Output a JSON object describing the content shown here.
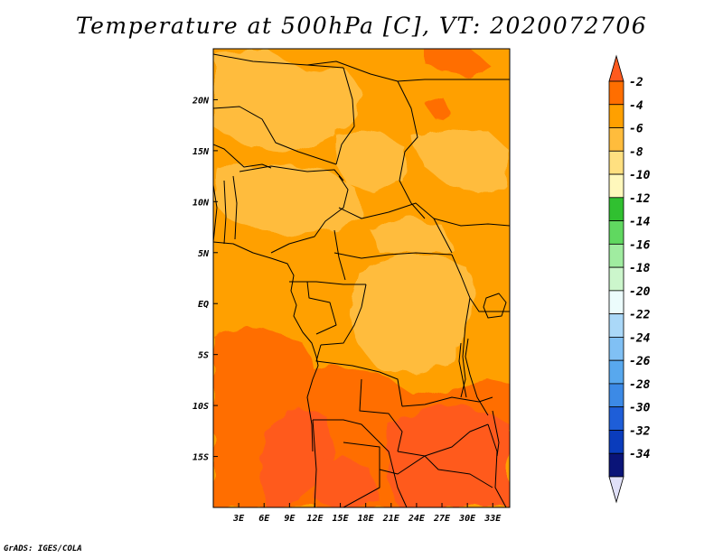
{
  "title": "Temperature at 500hPa [C], VT: 2020072706",
  "credit": "GrADS: IGES/COLA",
  "map": {
    "variable": "Temperature",
    "level": "500hPa",
    "units": "C",
    "valid_time": "2020072706",
    "lon_range": [
      0,
      35
    ],
    "lat_range": [
      -20,
      25
    ],
    "lon_ticks": [
      {
        "value": 3,
        "label": "3E"
      },
      {
        "value": 6,
        "label": "6E"
      },
      {
        "value": 9,
        "label": "9E"
      },
      {
        "value": 12,
        "label": "12E"
      },
      {
        "value": 15,
        "label": "15E"
      },
      {
        "value": 18,
        "label": "18E"
      },
      {
        "value": 21,
        "label": "21E"
      },
      {
        "value": 24,
        "label": "24E"
      },
      {
        "value": 27,
        "label": "27E"
      },
      {
        "value": 30,
        "label": "30E"
      },
      {
        "value": 33,
        "label": "33E"
      }
    ],
    "lat_ticks": [
      {
        "value": 20,
        "label": "20N"
      },
      {
        "value": 15,
        "label": "15N"
      },
      {
        "value": 10,
        "label": "10N"
      },
      {
        "value": 5,
        "label": "5N"
      },
      {
        "value": 0,
        "label": "EQ"
      },
      {
        "value": -5,
        "label": "5S"
      },
      {
        "value": -10,
        "label": "10S"
      },
      {
        "value": -15,
        "label": "15S"
      }
    ]
  },
  "legend": {
    "labels": [
      "-2",
      "-4",
      "-6",
      "-8",
      "-10",
      "-12",
      "-14",
      "-16",
      "-18",
      "-20",
      "-22",
      "-24",
      "-26",
      "-28",
      "-30",
      "-32",
      "-34"
    ],
    "colors": [
      "#ff5a1e",
      "#ff6e00",
      "#ffa000",
      "#ffbc3c",
      "#ffe080",
      "#fff8bc",
      "#30c030",
      "#60d860",
      "#a0eca0",
      "#ccf6cc",
      "#ecfcfc",
      "#aad8f8",
      "#80c0f4",
      "#58a8ee",
      "#3c8ae6",
      "#1e5ed8",
      "#0a3cbc",
      "#0a1478",
      "#e0e0f8"
    ]
  }
}
